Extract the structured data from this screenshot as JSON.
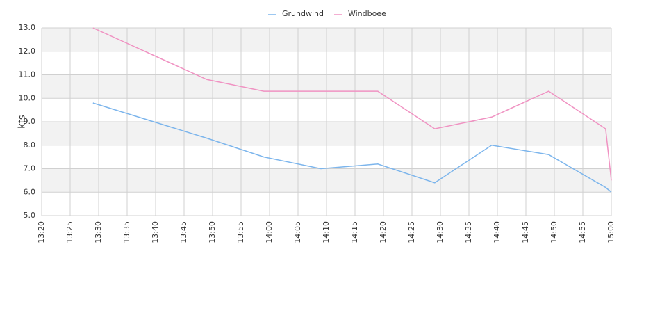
{
  "chart_data": {
    "type": "line",
    "y_label": "kts",
    "x": [
      "13:29",
      "13:49",
      "13:59",
      "14:09",
      "14:19",
      "14:29",
      "14:39",
      "14:49",
      "14:59",
      "15:00"
    ],
    "series": [
      {
        "name": "Grundwind",
        "color": "#7cb5ec",
        "values": [
          9.8,
          8.3,
          7.5,
          7.0,
          7.2,
          6.4,
          8.0,
          7.6,
          6.2,
          6.0
        ]
      },
      {
        "name": "Windboee",
        "color": "#f092c2",
        "values": [
          13.0,
          10.8,
          10.3,
          10.3,
          10.3,
          8.7,
          9.2,
          10.3,
          8.7,
          6.5
        ]
      }
    ],
    "xlim": [
      "13:20",
      "15:00"
    ],
    "xticks": [
      "13:20",
      "13:25",
      "13:30",
      "13:35",
      "13:40",
      "13:45",
      "13:50",
      "13:55",
      "14:00",
      "14:05",
      "14:10",
      "14:15",
      "14:20",
      "14:25",
      "14:30",
      "14:35",
      "14:40",
      "14:45",
      "14:50",
      "14:55",
      "15:00"
    ],
    "ylim": [
      5,
      13
    ],
    "yticks": [
      {
        "value": 5,
        "label": "5.0"
      },
      {
        "value": 6,
        "label": "6.0"
      },
      {
        "value": 7,
        "label": "7.0"
      },
      {
        "value": 8,
        "label": "8.0"
      },
      {
        "value": 9,
        "label": "9.0"
      },
      {
        "value": 10,
        "label": "10.0"
      },
      {
        "value": 11,
        "label": "11.0"
      },
      {
        "value": 12,
        "label": "12.0"
      },
      {
        "value": 13,
        "label": "13.0"
      }
    ],
    "grid": true,
    "bands": true,
    "legend": "top"
  }
}
